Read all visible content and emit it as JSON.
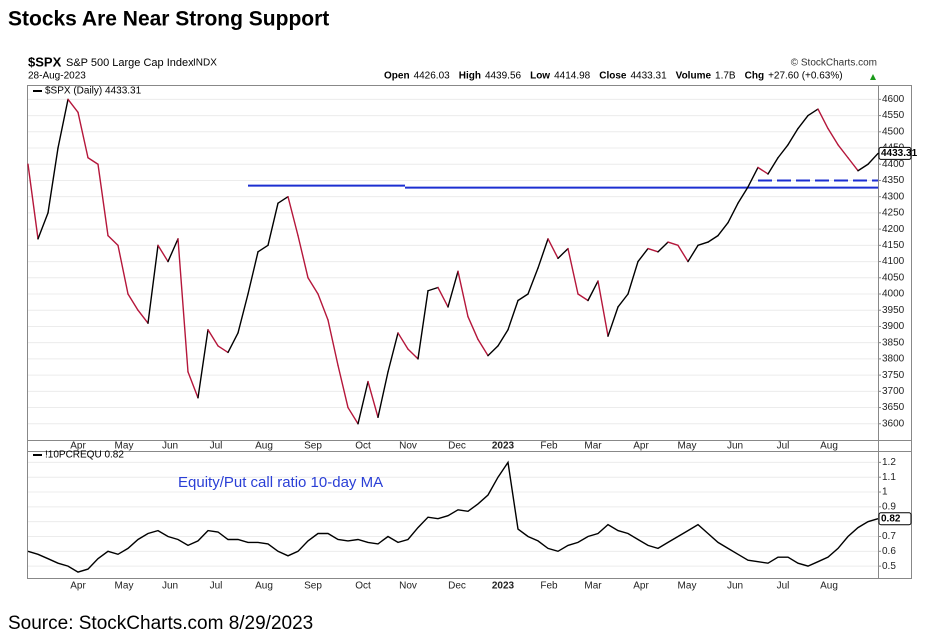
{
  "header": {
    "title": "Stocks Are Near Strong Support",
    "symbol": "$SPX",
    "name": "S&P 500 Large Cap Index",
    "exchange": "INDX",
    "date": "28-Aug-2023",
    "credit": "© StockCharts.com",
    "quote": [
      {
        "label": "Open",
        "value": "4426.03"
      },
      {
        "label": "High",
        "value": "4439.56"
      },
      {
        "label": "Low",
        "value": "4414.98"
      },
      {
        "label": "Close",
        "value": "4433.31"
      },
      {
        "label": "Volume",
        "value": "1.7B"
      },
      {
        "label": "Chg",
        "value": "+27.60 (+0.63%)"
      }
    ]
  },
  "chart_data": [
    {
      "type": "line",
      "legend": "$SPX (Daily) 4433.31",
      "values": [
        4400,
        4170,
        4250,
        4450,
        4600,
        4560,
        4420,
        4400,
        4180,
        4150,
        4000,
        3950,
        3910,
        4150,
        4100,
        4170,
        3760,
        3680,
        3890,
        3840,
        3820,
        3880,
        4000,
        4130,
        4150,
        4280,
        4300,
        4180,
        4050,
        4000,
        3920,
        3780,
        3650,
        3600,
        3730,
        3620,
        3760,
        3880,
        3830,
        3800,
        4010,
        4020,
        3960,
        4070,
        3930,
        3860,
        3810,
        3840,
        3890,
        3980,
        4000,
        4080,
        4170,
        4110,
        4140,
        4000,
        3980,
        4040,
        3870,
        3960,
        4000,
        4100,
        4140,
        4130,
        4160,
        4150,
        4100,
        4150,
        4160,
        4180,
        4220,
        4280,
        4330,
        4390,
        4370,
        4420,
        4460,
        4510,
        4550,
        4570,
        4510,
        4460,
        4420,
        4380,
        4400,
        4433.31
      ],
      "up_color": "#000000",
      "down_color": "#b5173b",
      "ylim": [
        3550,
        4635
      ],
      "yticks": [
        3600,
        3650,
        3700,
        3750,
        3800,
        3850,
        3900,
        3950,
        4000,
        4050,
        4100,
        4150,
        4200,
        4250,
        4300,
        4350,
        4400,
        4450,
        4500,
        4550,
        4600
      ],
      "xticks": [
        "Apr",
        "May",
        "Jun",
        "Jul",
        "Aug",
        "Sep",
        "Oct",
        "Nov",
        "Dec",
        "2023",
        "Feb",
        "Mar",
        "Apr",
        "May",
        "Jun",
        "Jul",
        "Aug"
      ],
      "lines": [
        {
          "value": 4334,
          "color": "#1c2fd1"
        },
        {
          "value": 4328,
          "color": "#1c2fd1"
        },
        {
          "value": 4350,
          "color": "#1c2fd1",
          "dashed": true
        }
      ],
      "grid": true
    },
    {
      "type": "line",
      "legend": "!10PCREQU 0.82",
      "annotation": "Equity/Put call ratio 10-day MA",
      "values": [
        0.6,
        0.58,
        0.55,
        0.52,
        0.5,
        0.46,
        0.48,
        0.55,
        0.6,
        0.58,
        0.62,
        0.68,
        0.72,
        0.74,
        0.7,
        0.68,
        0.64,
        0.67,
        0.74,
        0.73,
        0.68,
        0.68,
        0.66,
        0.66,
        0.65,
        0.6,
        0.57,
        0.6,
        0.67,
        0.72,
        0.72,
        0.68,
        0.67,
        0.68,
        0.66,
        0.65,
        0.7,
        0.66,
        0.68,
        0.76,
        0.83,
        0.82,
        0.84,
        0.88,
        0.87,
        0.92,
        0.98,
        1.1,
        1.2,
        0.75,
        0.7,
        0.67,
        0.62,
        0.6,
        0.64,
        0.66,
        0.7,
        0.72,
        0.78,
        0.74,
        0.72,
        0.68,
        0.64,
        0.62,
        0.66,
        0.7,
        0.74,
        0.78,
        0.72,
        0.66,
        0.62,
        0.58,
        0.54,
        0.53,
        0.52,
        0.56,
        0.56,
        0.52,
        0.5,
        0.53,
        0.56,
        0.62,
        0.7,
        0.76,
        0.8,
        0.82
      ],
      "color": "#000000",
      "ylim": [
        0.42,
        1.27
      ],
      "yticks": [
        0.5,
        0.6,
        0.7,
        0.8,
        0.9,
        1,
        1.1,
        1.2
      ],
      "xticks": [
        "Apr",
        "May",
        "Jun",
        "Jul",
        "Aug",
        "Sep",
        "Oct",
        "Nov",
        "Dec",
        "2023",
        "Feb",
        "Mar",
        "Apr",
        "May",
        "Jun",
        "Jul",
        "Aug"
      ],
      "grid": true
    }
  ],
  "footer": "Source: StockCharts.com 8/29/2023"
}
